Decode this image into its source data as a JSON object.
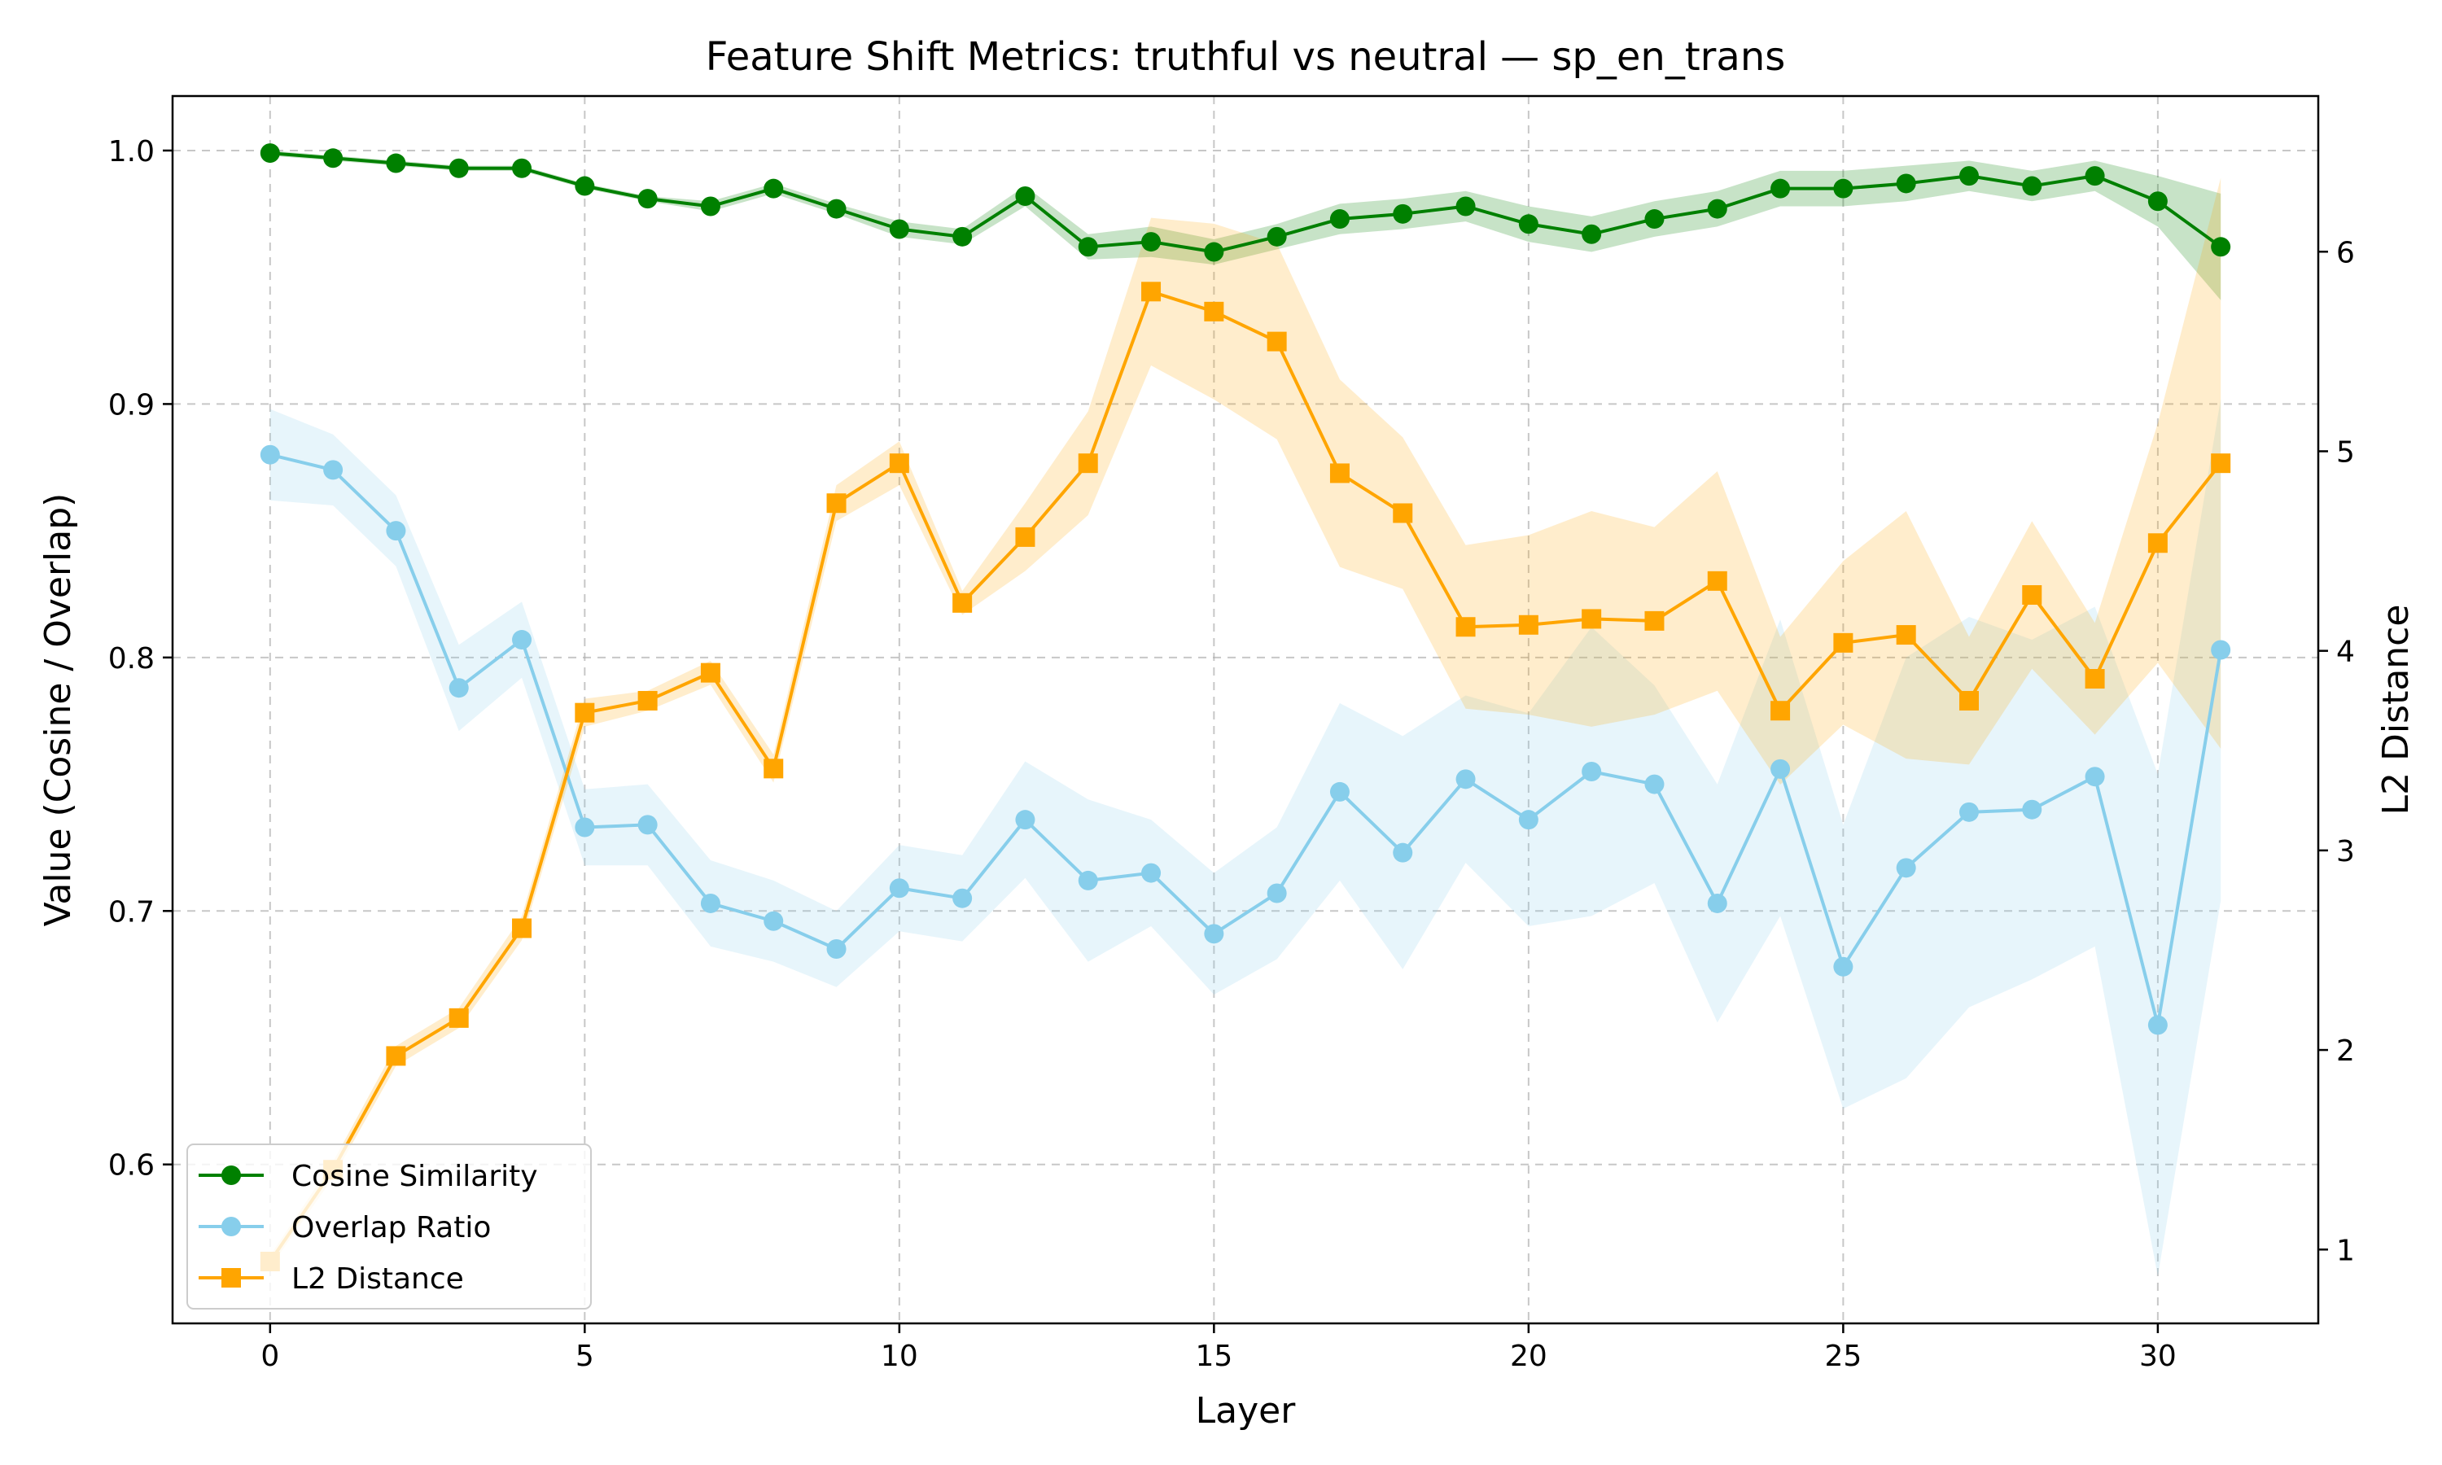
{
  "chart_data": {
    "type": "line",
    "title": "Feature Shift Metrics: truthful vs neutral — sp_en_trans",
    "xlabel": "Layer",
    "ylabel": "Value (Cosine / Overlap)",
    "y2label": "L2 Distance",
    "x": [
      0,
      1,
      2,
      3,
      4,
      5,
      6,
      7,
      8,
      9,
      10,
      11,
      12,
      13,
      14,
      15,
      16,
      17,
      18,
      19,
      20,
      21,
      22,
      23,
      24,
      25,
      26,
      27,
      28,
      29,
      30,
      31
    ],
    "xlim": [
      -1.55,
      32.55
    ],
    "ylim": [
      0.5373,
      1.0215
    ],
    "y2lim": [
      0.63,
      6.78
    ],
    "xticks": [
      0,
      5,
      10,
      15,
      20,
      25,
      30
    ],
    "xtick_labels": [
      "0",
      "5",
      "10",
      "15",
      "20",
      "25",
      "30"
    ],
    "yticks": [
      0.6,
      0.7,
      0.8,
      0.9,
      1.0
    ],
    "ytick_labels": [
      "0.6",
      "0.7",
      "0.8",
      "0.9",
      "1.0"
    ],
    "y2ticks": [
      1,
      2,
      3,
      4,
      5,
      6
    ],
    "y2tick_labels": [
      "1",
      "2",
      "3",
      "4",
      "5",
      "6"
    ],
    "grid": true,
    "legend_position": "lower-left",
    "series": [
      {
        "name": "Cosine Similarity",
        "axis": "left",
        "color": "#008000",
        "marker": "circle",
        "values": [
          0.999,
          0.997,
          0.995,
          0.993,
          0.993,
          0.986,
          0.981,
          0.978,
          0.985,
          0.977,
          0.969,
          0.966,
          0.982,
          0.962,
          0.964,
          0.96,
          0.966,
          0.973,
          0.975,
          0.978,
          0.971,
          0.967,
          0.973,
          0.977,
          0.985,
          0.985,
          0.987,
          0.99,
          0.986,
          0.99,
          0.98,
          0.962
        ],
        "lower": [
          0.998,
          0.996,
          0.994,
          0.992,
          0.992,
          0.985,
          0.98,
          0.976,
          0.983,
          0.975,
          0.966,
          0.963,
          0.978,
          0.957,
          0.958,
          0.955,
          0.961,
          0.967,
          0.969,
          0.972,
          0.964,
          0.96,
          0.966,
          0.97,
          0.978,
          0.978,
          0.98,
          0.984,
          0.98,
          0.984,
          0.97,
          0.941
        ],
        "upper": [
          1.0,
          0.998,
          0.996,
          0.994,
          0.994,
          0.987,
          0.982,
          0.98,
          0.987,
          0.979,
          0.972,
          0.969,
          0.986,
          0.967,
          0.97,
          0.965,
          0.971,
          0.979,
          0.981,
          0.984,
          0.978,
          0.974,
          0.98,
          0.984,
          0.992,
          0.992,
          0.994,
          0.996,
          0.992,
          0.996,
          0.99,
          0.983
        ]
      },
      {
        "name": "Overlap Ratio",
        "axis": "left",
        "color": "#87CEEB",
        "marker": "circle",
        "values": [
          0.88,
          0.874,
          0.85,
          0.788,
          0.807,
          0.733,
          0.734,
          0.703,
          0.696,
          0.685,
          0.709,
          0.705,
          0.736,
          0.712,
          0.715,
          0.691,
          0.707,
          0.747,
          0.723,
          0.752,
          0.736,
          0.755,
          0.75,
          0.703,
          0.756,
          0.678,
          0.717,
          0.739,
          0.74,
          0.753,
          0.655,
          0.803
        ],
        "lower": [
          0.862,
          0.86,
          0.836,
          0.771,
          0.792,
          0.718,
          0.718,
          0.686,
          0.68,
          0.67,
          0.692,
          0.688,
          0.713,
          0.68,
          0.694,
          0.667,
          0.681,
          0.712,
          0.677,
          0.719,
          0.694,
          0.698,
          0.711,
          0.656,
          0.698,
          0.622,
          0.634,
          0.662,
          0.673,
          0.686,
          0.556,
          0.704
        ],
        "upper": [
          0.898,
          0.888,
          0.864,
          0.805,
          0.822,
          0.748,
          0.75,
          0.72,
          0.712,
          0.7,
          0.726,
          0.722,
          0.759,
          0.744,
          0.736,
          0.715,
          0.733,
          0.782,
          0.769,
          0.785,
          0.778,
          0.812,
          0.789,
          0.75,
          0.815,
          0.734,
          0.8,
          0.816,
          0.807,
          0.82,
          0.754,
          0.902
        ]
      },
      {
        "name": "L2 Distance",
        "axis": "right",
        "color": "#FFA500",
        "marker": "square",
        "values": [
          0.94,
          1.4,
          1.97,
          2.16,
          2.61,
          3.69,
          3.75,
          3.89,
          3.41,
          4.74,
          4.94,
          4.24,
          4.57,
          4.94,
          5.8,
          5.7,
          5.55,
          4.89,
          4.69,
          4.12,
          4.13,
          4.16,
          4.15,
          4.35,
          3.7,
          4.04,
          4.08,
          3.75,
          4.28,
          3.86,
          4.54,
          4.94
        ],
        "lower": [
          0.91,
          1.36,
          1.92,
          2.11,
          2.55,
          3.62,
          3.7,
          3.83,
          3.34,
          4.65,
          4.83,
          4.18,
          4.4,
          4.68,
          5.43,
          5.26,
          5.06,
          4.42,
          4.31,
          3.71,
          3.68,
          3.62,
          3.68,
          3.8,
          3.33,
          3.63,
          3.46,
          3.43,
          3.91,
          3.58,
          3.94,
          3.51
        ],
        "upper": [
          0.97,
          1.44,
          2.02,
          2.21,
          2.67,
          3.76,
          3.8,
          3.95,
          3.48,
          4.83,
          5.05,
          4.3,
          4.74,
          5.2,
          6.17,
          6.14,
          6.04,
          5.36,
          5.07,
          4.53,
          4.58,
          4.7,
          4.62,
          4.9,
          4.07,
          4.45,
          4.7,
          4.07,
          4.65,
          4.14,
          5.14,
          6.37
        ]
      }
    ]
  }
}
